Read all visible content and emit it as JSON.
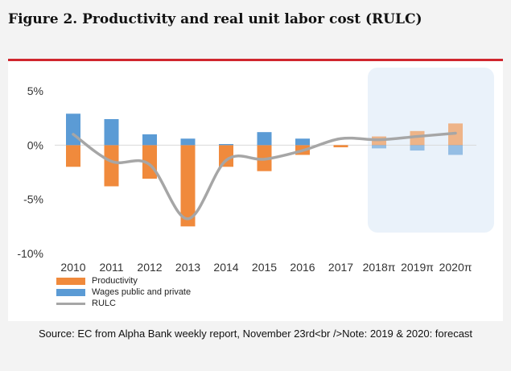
{
  "title": "Figure 2. Productivity and real unit labor cost (RULC)",
  "colors": {
    "productivity": "#f08a3c",
    "wages": "#5b9bd5",
    "rulc": "#a6a6a6",
    "forecast_bg": "#eaf2fa",
    "rule": "#d0262e"
  },
  "chart_data": {
    "type": "bar",
    "title": "Figure 2. Productivity and real unit labor cost (RULC)",
    "categories": [
      "2010",
      "2011",
      "2012",
      "2013",
      "2014",
      "2015",
      "2016",
      "2017",
      "2018π",
      "2019π",
      "2020π"
    ],
    "forecast_categories": [
      "2018π",
      "2019π",
      "2020π"
    ],
    "ylim": [
      -10,
      5
    ],
    "yticks": [
      5,
      0,
      -5,
      -10
    ],
    "ytick_labels": [
      "5%",
      "0%",
      "-5%",
      "-10%"
    ],
    "series": [
      {
        "name": "Productivity",
        "type": "bar",
        "values": [
          -2.0,
          -3.8,
          -3.1,
          -7.5,
          -2.0,
          -2.4,
          -0.9,
          -0.2,
          0.8,
          1.3,
          2.0
        ]
      },
      {
        "name": "Wages public and private",
        "type": "bar",
        "values": [
          2.9,
          2.4,
          1.0,
          0.6,
          0.1,
          1.2,
          0.6,
          0.0,
          -0.3,
          -0.5,
          -0.9
        ]
      },
      {
        "name": "RULC",
        "type": "line",
        "values": [
          1.0,
          -1.5,
          -1.8,
          -6.8,
          -1.4,
          -1.3,
          -0.5,
          0.6,
          0.5,
          0.8,
          1.1
        ]
      }
    ]
  },
  "legend": {
    "productivity": "Productivity",
    "wages": "Wages public and private",
    "rulc": "RULC"
  },
  "source": "Source: EC from Alpha Bank weekly report, November 23rd<br />Note: 2019 & 2020: forecast"
}
